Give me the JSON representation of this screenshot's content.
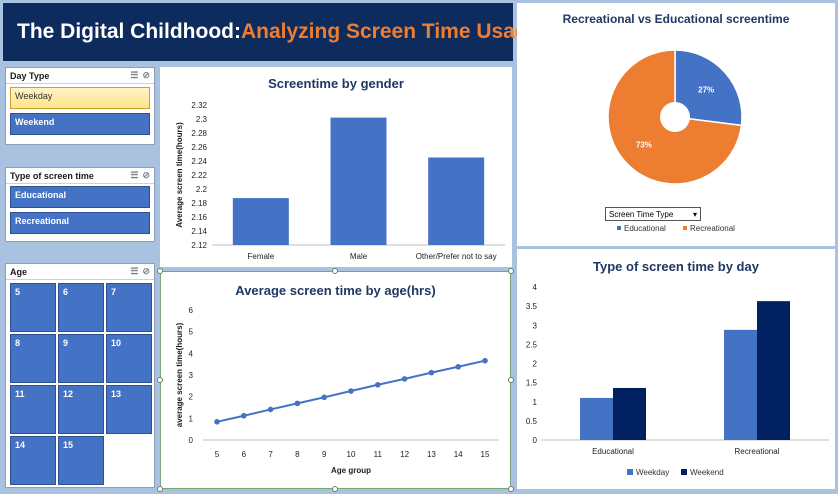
{
  "header": {
    "title_main": "The Digital Childhood",
    "title_sep": ": ",
    "title_accent": "Analyzing Screen Time Usage"
  },
  "slicers": {
    "day_type": {
      "title": "Day Type",
      "items": [
        "Weekday",
        "Weekend"
      ]
    },
    "screen_type": {
      "title": "Type of screen time",
      "items": [
        "Educational",
        "Recreational"
      ]
    },
    "age": {
      "title": "Age",
      "items": [
        "5",
        "6",
        "7",
        "8",
        "9",
        "10",
        "11",
        "12",
        "13",
        "14",
        "15"
      ]
    }
  },
  "dropdown": {
    "label": "Screen Time Type"
  },
  "colors": {
    "blue": "#4472c4",
    "orange": "#ed7d31",
    "navy": "#002060",
    "title_navy": "#0d2b5c"
  },
  "chart_data": [
    {
      "type": "bar",
      "title": "Screentime by gender",
      "ylabel": "Average screen time(hours)",
      "categories": [
        "Female",
        "Male",
        "Other/Prefer not to say"
      ],
      "values": [
        2.187,
        2.302,
        2.245
      ],
      "ylim": [
        2.12,
        2.32
      ],
      "yticks": [
        "2.12",
        "2.14",
        "2.16",
        "2.18",
        "2.2",
        "2.22",
        "2.24",
        "2.26",
        "2.28",
        "2.3",
        "2.32"
      ]
    },
    {
      "type": "line",
      "title": "Average screen time by age(hrs)",
      "xlabel": "Age group",
      "ylabel": "average screen time(hours)",
      "x": [
        "5",
        "6",
        "7",
        "8",
        "9",
        "10",
        "11",
        "12",
        "13",
        "14",
        "15"
      ],
      "values": [
        0.84,
        1.12,
        1.41,
        1.69,
        1.97,
        2.26,
        2.55,
        2.82,
        3.11,
        3.38,
        3.66
      ],
      "ylim": [
        0,
        6
      ],
      "yticks": [
        "0",
        "1",
        "2",
        "3",
        "4",
        "5",
        "6"
      ]
    },
    {
      "type": "pie",
      "title": "Recreational vs Educational screentime",
      "labels": [
        "Educational",
        "Recreational"
      ],
      "values": [
        27,
        73
      ],
      "data_labels": [
        "27%",
        "73%"
      ],
      "legend_position": "bottom"
    },
    {
      "type": "bar",
      "title": "Type of screen time by day",
      "categories": [
        "Educational",
        "Recreational"
      ],
      "series": [
        {
          "name": "Weekday",
          "values": [
            1.1,
            2.88
          ]
        },
        {
          "name": "Weekend",
          "values": [
            1.36,
            3.63
          ]
        }
      ],
      "ylim": [
        0,
        4
      ],
      "yticks": [
        "0",
        "0.5",
        "1",
        "1.5",
        "2",
        "2.5",
        "3",
        "3.5",
        "4"
      ],
      "legend_position": "bottom"
    }
  ]
}
